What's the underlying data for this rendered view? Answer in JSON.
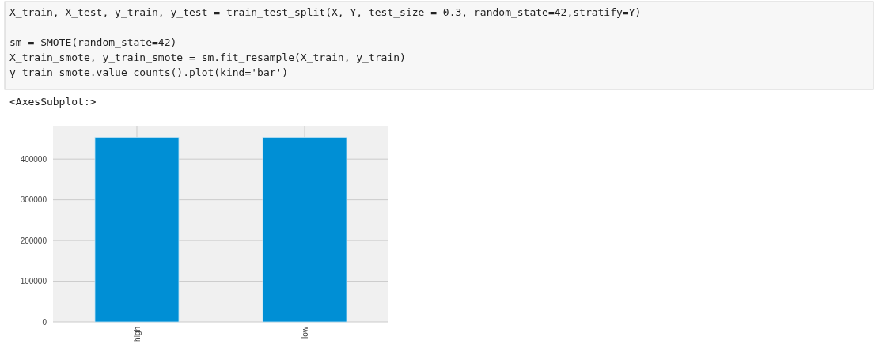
{
  "chart_data": {
    "type": "bar",
    "annotations": [
      "X_train, X_test, y_train, y_test = train_test_split(X, Y, test_size = 0.3, random_state=42,stratify=Y)",
      "sm = SMOTE(random_state=42)",
      "X_train_smote, y_train_smote = sm.fit_resample(X_train, y_train)",
      "y_train_smote.value_counts().plot(kind='bar')",
      "<AxesSubplot:>"
    ],
    "categories": [
      "high",
      "low"
    ],
    "values": [
      454000,
      454000
    ],
    "color": "#008fd5",
    "ylim": [
      0,
      482000
    ],
    "yticks": [
      0,
      100000,
      200000,
      300000,
      400000
    ],
    "grid": true
  }
}
